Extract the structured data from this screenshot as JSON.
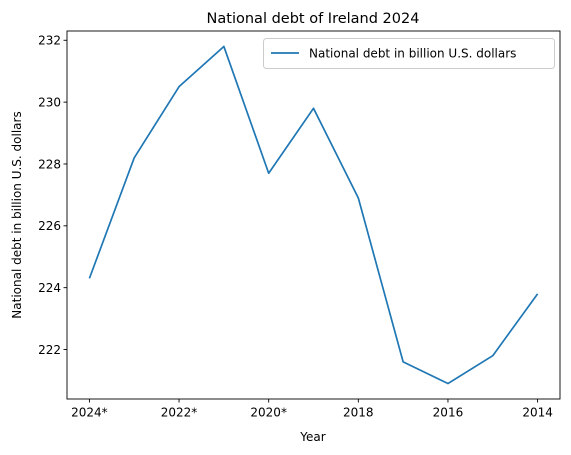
{
  "chart_data": {
    "type": "line",
    "title": "National debt of Ireland 2024",
    "xlabel": "Year",
    "ylabel": "National debt in billion U.S. dollars",
    "x": [
      "2024*",
      "2023*",
      "2022*",
      "2021*",
      "2020*",
      "2019",
      "2018",
      "2017",
      "2016",
      "2015",
      "2014"
    ],
    "x_tick_labels": [
      "2024*",
      "2022*",
      "2020*",
      "2018",
      "2016",
      "2014"
    ],
    "y_ticks": [
      222,
      224,
      226,
      228,
      230,
      232
    ],
    "ylim": [
      220.4,
      232.3
    ],
    "grid": false,
    "legend_position": "upper right",
    "series": [
      {
        "name": "National debt in billion U.S. dollars",
        "color": "#1f77b4",
        "values": [
          224.3,
          228.2,
          230.5,
          231.8,
          227.7,
          229.8,
          226.9,
          221.6,
          220.9,
          221.8,
          223.8
        ]
      }
    ]
  }
}
